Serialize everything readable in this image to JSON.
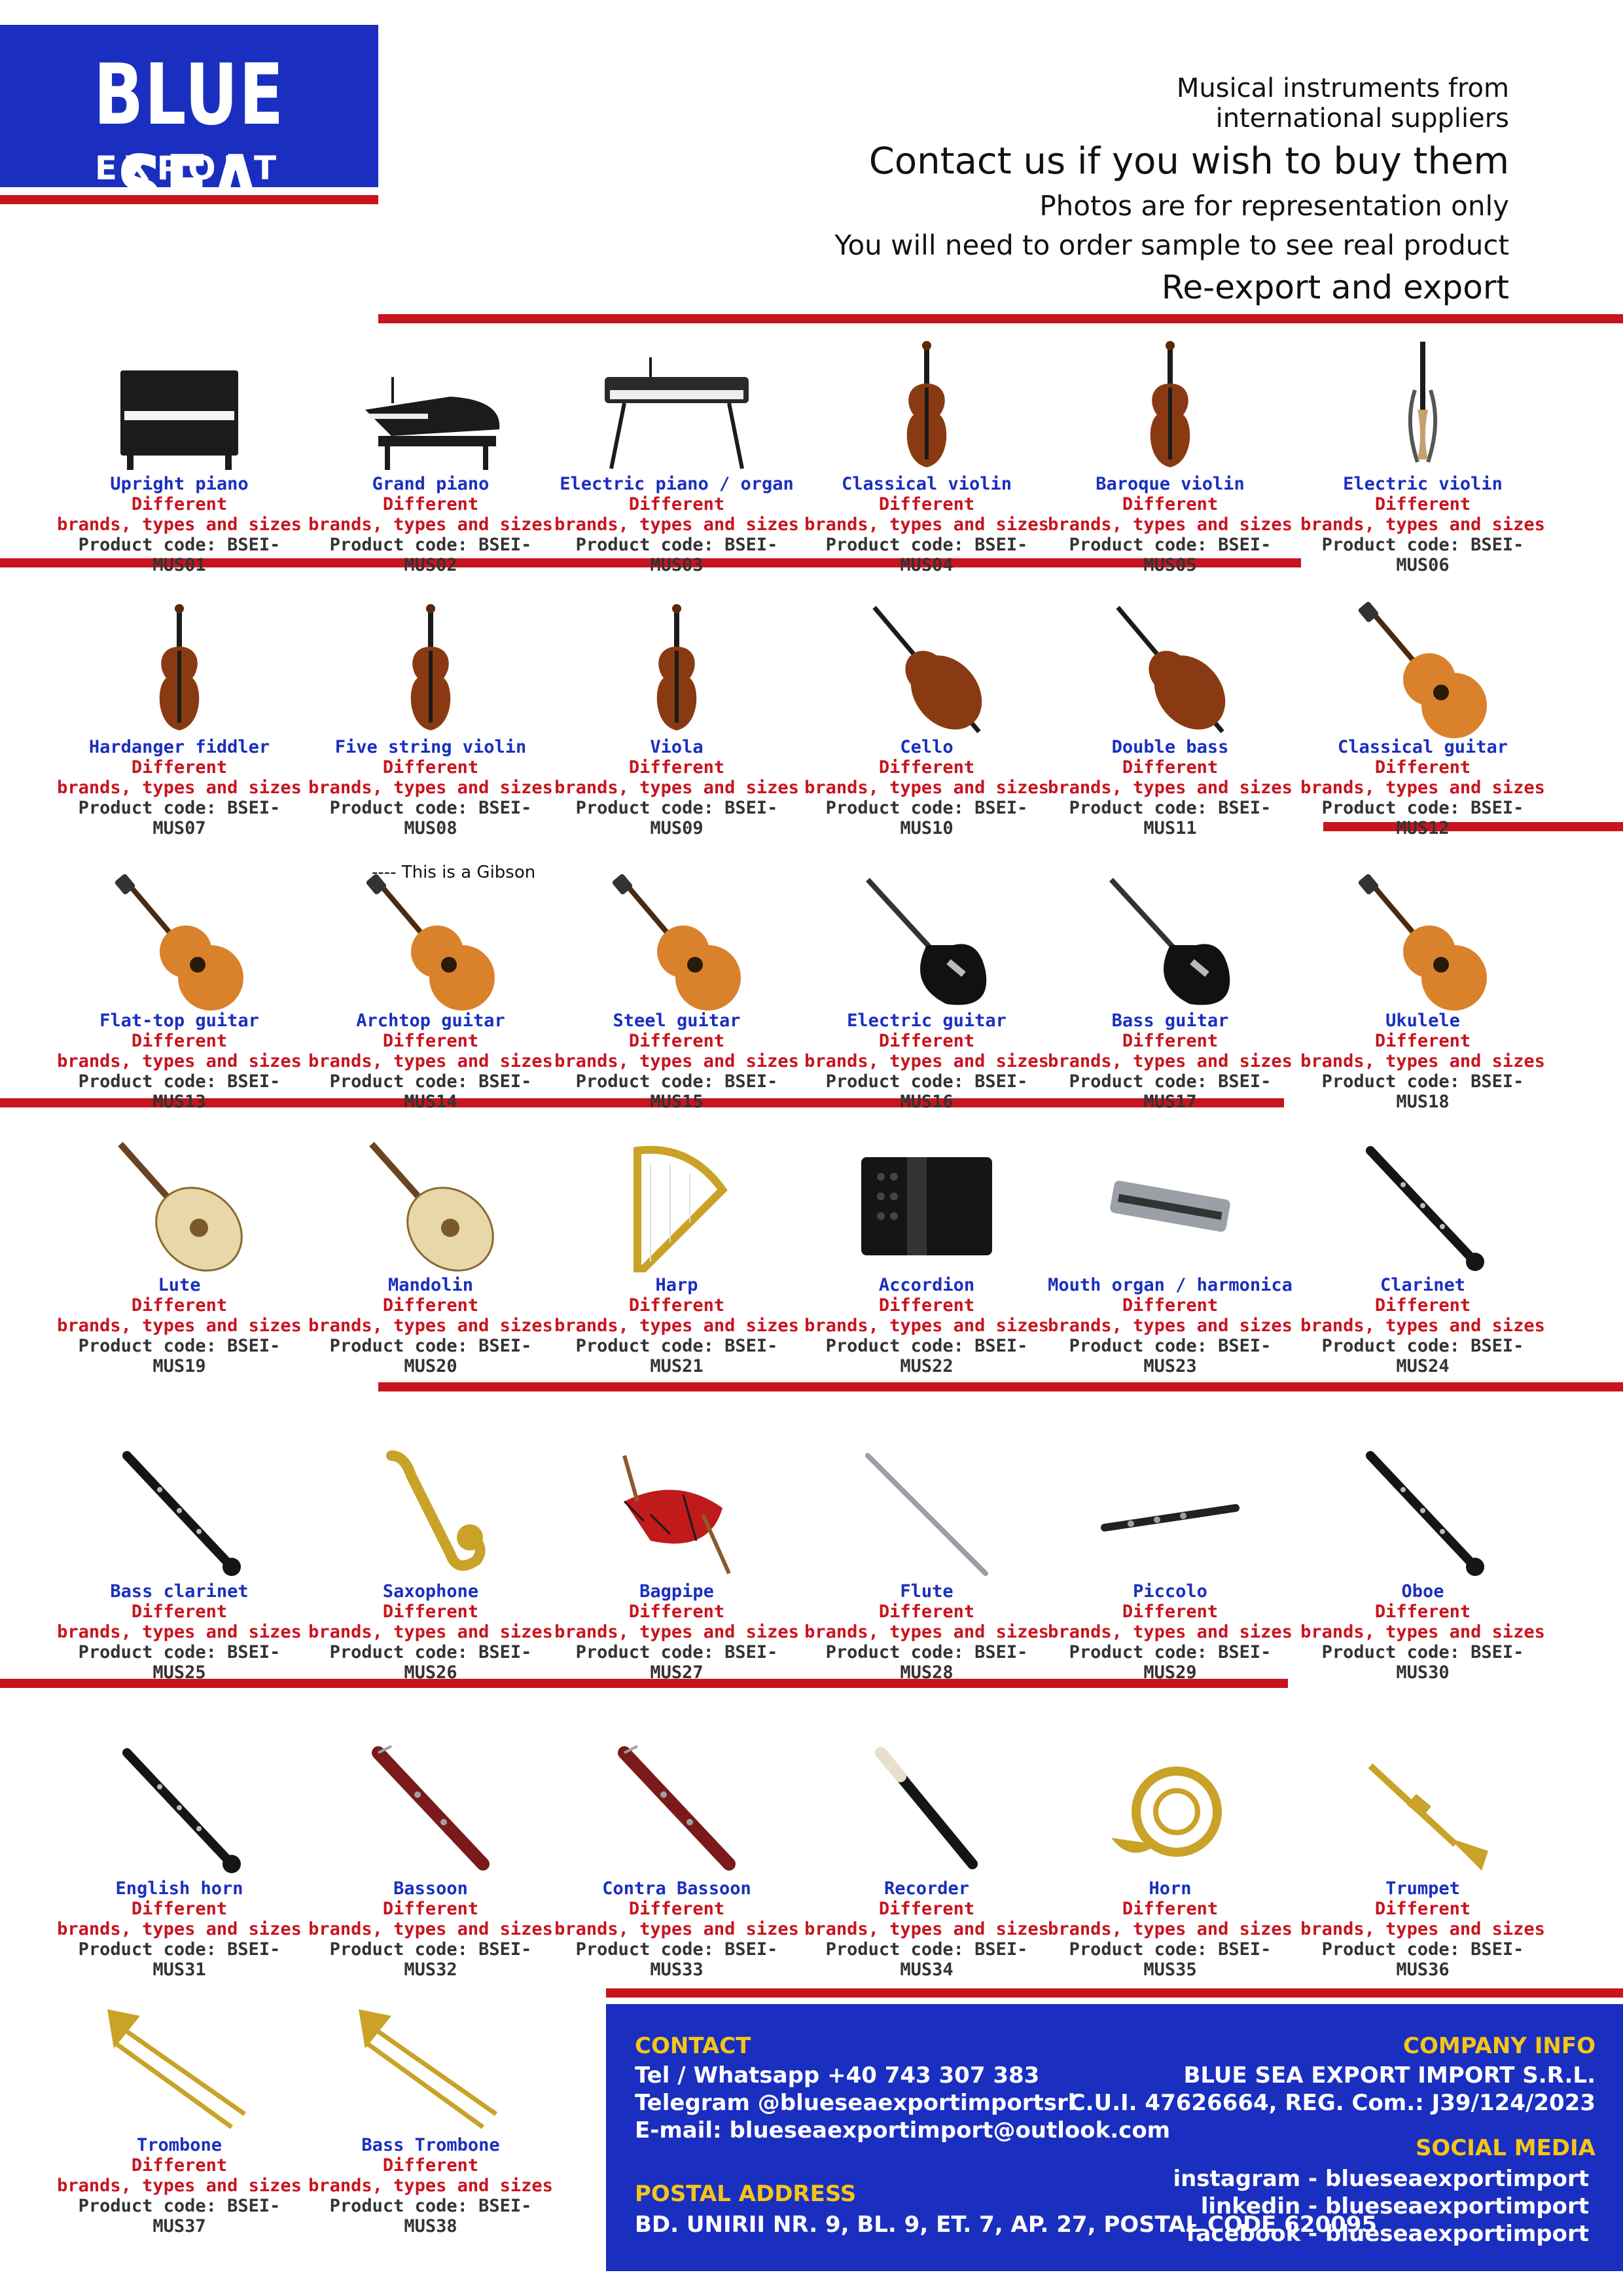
{
  "logo": {
    "line1": "BLUE SEA",
    "line2": "EXPORT IMPORT"
  },
  "header": {
    "line1": "Musical instruments from",
    "line2": "international suppliers",
    "line3": "Contact us if you wish to buy them",
    "line4": "Photos are for representation only",
    "line5": "You will need to order sample to see real product",
    "line6": "Re-export and export"
  },
  "common": {
    "different": "Different",
    "brands": "brands, types and sizes",
    "code_prefix": "Product code: "
  },
  "gibson_note": "---- This is a Gibson",
  "products": [
    {
      "name": "Upright piano",
      "code": "BSEI-MUS01",
      "icon": "upright-piano"
    },
    {
      "name": "Grand piano",
      "code": "BSEI-MUS02",
      "icon": "grand-piano"
    },
    {
      "name": "Electric piano / organ",
      "code": "BSEI-MUS03",
      "icon": "keyboard"
    },
    {
      "name": "Classical violin",
      "code": "BSEI-MUS04",
      "icon": "violin"
    },
    {
      "name": "Baroque violin",
      "code": "BSEI-MUS05",
      "icon": "violin"
    },
    {
      "name": "Electric violin",
      "code": "BSEI-MUS06",
      "icon": "electric-violin"
    },
    {
      "name": "Hardanger fiddler",
      "code": "BSEI-MUS07",
      "icon": "violin"
    },
    {
      "name": "Five string violin",
      "code": "BSEI-MUS08",
      "icon": "violin"
    },
    {
      "name": "Viola",
      "code": "BSEI-MUS09",
      "icon": "violin"
    },
    {
      "name": "Cello",
      "code": "BSEI-MUS10",
      "icon": "cello"
    },
    {
      "name": "Double bass",
      "code": "BSEI-MUS11",
      "icon": "cello"
    },
    {
      "name": "Classical guitar",
      "code": "BSEI-MUS12",
      "icon": "guitar"
    },
    {
      "name": "Flat-top guitar",
      "code": "BSEI-MUS13",
      "icon": "guitar"
    },
    {
      "name": "Archtop guitar",
      "code": "BSEI-MUS14",
      "icon": "guitar"
    },
    {
      "name": "Steel guitar",
      "code": "BSEI-MUS15",
      "icon": "guitar"
    },
    {
      "name": "Electric guitar",
      "code": "BSEI-MUS16",
      "icon": "electric-guitar"
    },
    {
      "name": "Bass guitar",
      "code": "BSEI-MUS17",
      "icon": "electric-guitar"
    },
    {
      "name": "Ukulele",
      "code": "BSEI-MUS18",
      "icon": "guitar"
    },
    {
      "name": "Lute",
      "code": "BSEI-MUS19",
      "icon": "lute"
    },
    {
      "name": "Mandolin",
      "code": "BSEI-MUS20",
      "icon": "lute"
    },
    {
      "name": "Harp",
      "code": "BSEI-MUS21",
      "icon": "harp"
    },
    {
      "name": "Accordion",
      "code": "BSEI-MUS22",
      "icon": "accordion"
    },
    {
      "name": "Mouth organ / harmonica",
      "code": "BSEI-MUS23",
      "icon": "harmonica"
    },
    {
      "name": "Clarinet",
      "code": "BSEI-MUS24",
      "icon": "clarinet"
    },
    {
      "name": "Bass clarinet",
      "code": "BSEI-MUS25",
      "icon": "clarinet"
    },
    {
      "name": "Saxophone",
      "code": "BSEI-MUS26",
      "icon": "saxophone"
    },
    {
      "name": "Bagpipe",
      "code": "BSEI-MUS27",
      "icon": "bagpipe"
    },
    {
      "name": "Flute",
      "code": "BSEI-MUS28",
      "icon": "flute"
    },
    {
      "name": "Piccolo",
      "code": "BSEI-MUS29",
      "icon": "piccolo"
    },
    {
      "name": "Oboe",
      "code": "BSEI-MUS30",
      "icon": "clarinet"
    },
    {
      "name": "English horn",
      "code": "BSEI-MUS31",
      "icon": "clarinet"
    },
    {
      "name": "Bassoon",
      "code": "BSEI-MUS32",
      "icon": "bassoon"
    },
    {
      "name": "Contra Bassoon",
      "code": "BSEI-MUS33",
      "icon": "bassoon"
    },
    {
      "name": "Recorder",
      "code": "BSEI-MUS34",
      "icon": "recorder"
    },
    {
      "name": "Horn",
      "code": "BSEI-MUS35",
      "icon": "french-horn"
    },
    {
      "name": "Trumpet",
      "code": "BSEI-MUS36",
      "icon": "trumpet"
    },
    {
      "name": "Trombone",
      "code": "BSEI-MUS37",
      "icon": "trombone"
    },
    {
      "name": "Bass Trombone",
      "code": "BSEI-MUS38",
      "icon": "trombone"
    }
  ],
  "contact": {
    "title": "CONTACT",
    "phone": "Tel / Whatsapp +40 743 307 383",
    "telegram": "Telegram @blueseaexportimportsrl",
    "email": "E-mail: blueseaexportimport@outlook.com",
    "postal_title": "POSTAL ADDRESS",
    "postal": "BD. UNIRII NR. 9, BL. 9, ET. 7, AP. 27, POSTAL CODE 620095",
    "company_title": "COMPANY INFO",
    "company_name": "BLUE SEA EXPORT IMPORT S.R.L.",
    "company_reg": "C.U.I. 47626664, REG. Com.: J39/124/2023",
    "social_title": "SOCIAL MEDIA",
    "instagram": "instagram - blueseaexportimport",
    "linkedin": "linkedin - blueseaexportimport",
    "facebook": "facebook - blueseaexportimport"
  },
  "colors": {
    "brand_blue": "#1a2fbf",
    "accent_red": "#c8141e",
    "highlight_yellow": "#f5c518"
  }
}
